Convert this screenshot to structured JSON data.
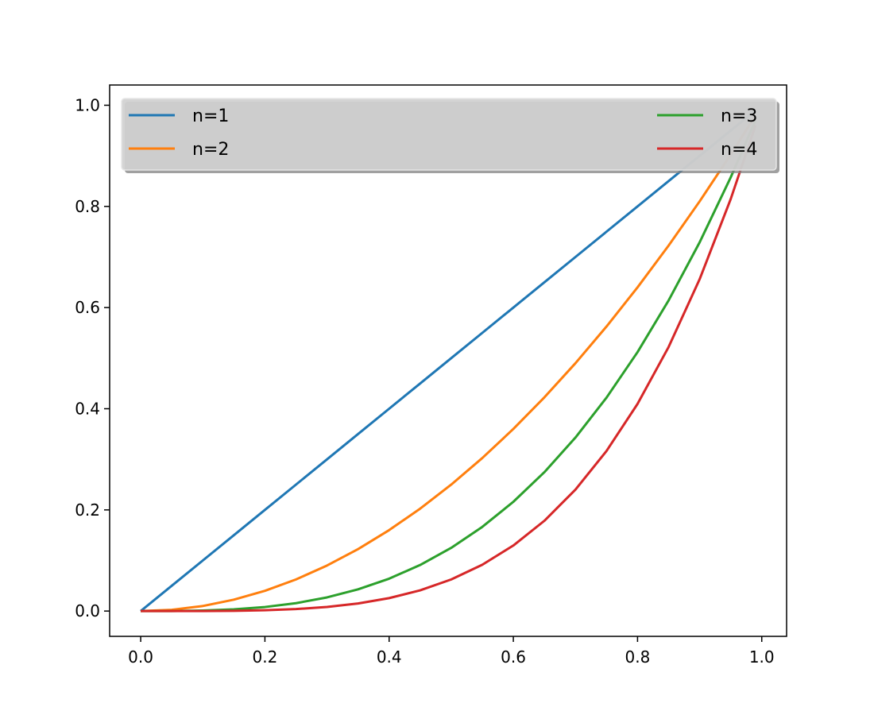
{
  "chart_data": {
    "type": "line",
    "title": "",
    "xlabel": "",
    "ylabel": "",
    "xlim": [
      -0.05,
      1.04
    ],
    "ylim": [
      -0.05,
      1.04
    ],
    "xticks": [
      0.0,
      0.2,
      0.4,
      0.6,
      0.8,
      1.0
    ],
    "xtick_labels": [
      "0.0",
      "0.2",
      "0.4",
      "0.6",
      "0.8",
      "1.0"
    ],
    "yticks": [
      0.0,
      0.2,
      0.4,
      0.6,
      0.8,
      1.0
    ],
    "ytick_labels": [
      "0.0",
      "0.2",
      "0.4",
      "0.6",
      "0.8",
      "1.0"
    ],
    "grid": false,
    "legend": {
      "position": "top",
      "columns": 2,
      "shadow": true
    },
    "x": [
      0.0,
      0.05,
      0.1,
      0.15,
      0.2,
      0.25,
      0.3,
      0.35,
      0.4,
      0.45,
      0.5,
      0.55,
      0.6,
      0.65,
      0.7,
      0.75,
      0.8,
      0.85,
      0.9,
      0.95,
      0.99
    ],
    "series": [
      {
        "name": "n=1",
        "color": "#1f77b4",
        "values": [
          0.0,
          0.05,
          0.1,
          0.15,
          0.2,
          0.25,
          0.3,
          0.35,
          0.4,
          0.45,
          0.5,
          0.55,
          0.6,
          0.65,
          0.7,
          0.75,
          0.8,
          0.85,
          0.9,
          0.95,
          0.99
        ]
      },
      {
        "name": "n=2",
        "color": "#ff7f0e",
        "values": [
          0.0,
          0.0025,
          0.01,
          0.0225,
          0.04,
          0.0625,
          0.09,
          0.1225,
          0.16,
          0.2025,
          0.25,
          0.3025,
          0.36,
          0.4225,
          0.49,
          0.5625,
          0.64,
          0.7225,
          0.81,
          0.9025,
          0.98
        ]
      },
      {
        "name": "n=3",
        "color": "#2ca02c",
        "values": [
          0.0,
          0.0001,
          0.001,
          0.0034,
          0.008,
          0.0156,
          0.027,
          0.0429,
          0.064,
          0.0911,
          0.125,
          0.1664,
          0.216,
          0.2746,
          0.343,
          0.4219,
          0.512,
          0.6141,
          0.729,
          0.8574,
          0.97
        ]
      },
      {
        "name": "n=4",
        "color": "#d62728",
        "values": [
          0.0,
          0.0,
          0.0001,
          0.0005,
          0.0016,
          0.0039,
          0.0081,
          0.015,
          0.0256,
          0.041,
          0.0625,
          0.0915,
          0.1296,
          0.1785,
          0.2401,
          0.3164,
          0.4096,
          0.522,
          0.6561,
          0.8145,
          0.96
        ]
      }
    ]
  }
}
